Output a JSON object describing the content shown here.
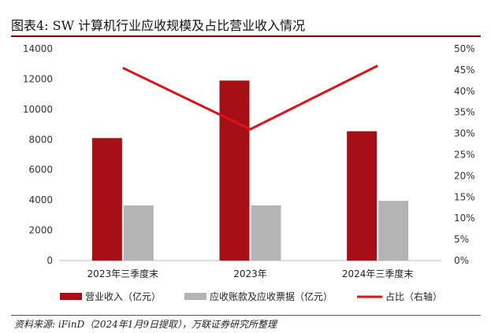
{
  "title": "图表4:  SW 计算机行业应收规模及占比营业收入情况",
  "source": "资料来源: iFinD（2024年1月9日提取），万联证券研究所整理",
  "chart_data": {
    "type": "bar",
    "categories": [
      "2023年三季度末",
      "2023年",
      "2024年三季度末"
    ],
    "series": [
      {
        "name": "营业收入（亿元）",
        "kind": "bar",
        "axis": "left",
        "color": "#a50f15",
        "values": [
          8100,
          11900,
          8550
        ]
      },
      {
        "name": "应收账款及应收票据（亿元）",
        "kind": "bar",
        "axis": "left",
        "color": "#b4b4b4",
        "values": [
          3650,
          3650,
          3950
        ]
      },
      {
        "name": "占比（右轴）",
        "kind": "line",
        "axis": "right",
        "color": "#d9141c",
        "values": [
          45.5,
          31.0,
          46.0
        ]
      }
    ],
    "left_axis": {
      "min": 0,
      "max": 14000,
      "ticks": [
        "0",
        "2000",
        "4000",
        "6000",
        "8000",
        "10000",
        "12000",
        "14000"
      ]
    },
    "right_axis": {
      "min": 0,
      "max": 50,
      "ticks": [
        "0%",
        "5%",
        "10%",
        "15%",
        "20%",
        "25%",
        "30%",
        "35%",
        "40%",
        "45%",
        "50%"
      ]
    },
    "grid": false,
    "legend_position": "bottom"
  }
}
